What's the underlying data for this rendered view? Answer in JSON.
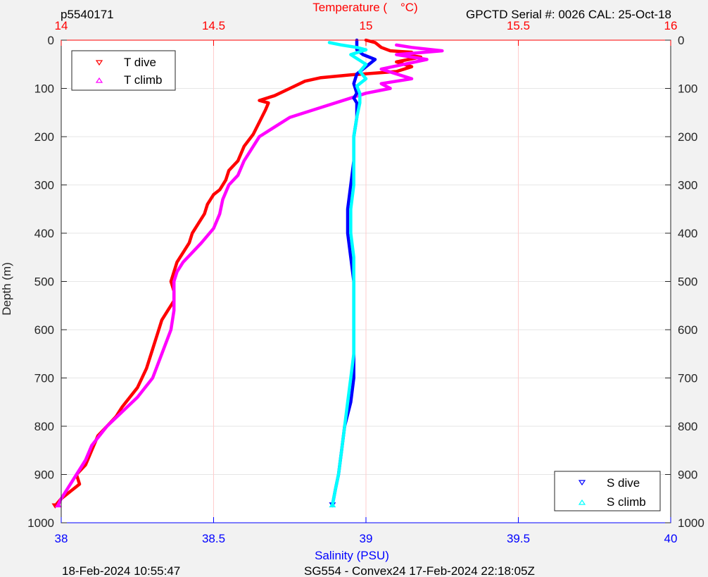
{
  "header": {
    "profile_id": "p5540171",
    "sensor_info": "GPCTD Serial #: 0026 CAL: 25-Oct-18"
  },
  "footer": {
    "plot_time": "18-Feb-2024 10:55:47",
    "mission_info": "SG554 - Convex24 17-Feb-2024 22:18:05Z"
  },
  "colors": {
    "temperature_axis": "#ff0000",
    "salinity_axis": "#0000ff",
    "t_dive": "#ff0000",
    "t_climb": "#ff00ff",
    "s_dive": "#0000ff",
    "s_climb": "#00ffff",
    "grid_x": "#ffcccc",
    "grid_y": "#e6e6e6",
    "background": "#f2f2f2",
    "plot_area": "#ffffff"
  },
  "chart_data": {
    "type": "line",
    "ylabel": "Depth (m)",
    "ylim": [
      1000,
      0
    ],
    "yticks": [
      "0",
      "100",
      "200",
      "300",
      "400",
      "500",
      "600",
      "700",
      "800",
      "900",
      "1000"
    ],
    "temperature_axis": {
      "label": "Temperature (    °C)",
      "position": "top",
      "range": [
        14,
        16
      ],
      "ticks": [
        "14",
        "14.5",
        "15",
        "15.5",
        "16"
      ]
    },
    "salinity_axis": {
      "label": "Salinity (PSU)",
      "position": "bottom",
      "range": [
        38,
        40
      ],
      "ticks": [
        "38",
        "38.5",
        "39",
        "39.5",
        "40"
      ]
    },
    "grid": true,
    "legends": [
      {
        "placement": "top-left",
        "entries": [
          {
            "label": "T dive",
            "series": "t_dive",
            "marker": "down-triangle"
          },
          {
            "label": "T climb",
            "series": "t_climb",
            "marker": "up-triangle"
          }
        ]
      },
      {
        "placement": "bottom-right",
        "entries": [
          {
            "label": "S dive",
            "series": "s_dive",
            "marker": "down-triangle"
          },
          {
            "label": "S climb",
            "series": "s_climb",
            "marker": "up-triangle"
          }
        ]
      }
    ],
    "series": [
      {
        "name": "T dive",
        "key": "t_dive",
        "axis": "temperature",
        "points": [
          [
            15.0,
            0
          ],
          [
            15.03,
            5
          ],
          [
            15.05,
            15
          ],
          [
            15.08,
            22
          ],
          [
            15.15,
            25
          ],
          [
            15.12,
            30
          ],
          [
            15.18,
            35
          ],
          [
            15.1,
            45
          ],
          [
            15.15,
            55
          ],
          [
            15.1,
            65
          ],
          [
            14.95,
            72
          ],
          [
            14.85,
            78
          ],
          [
            14.8,
            85
          ],
          [
            14.75,
            100
          ],
          [
            14.7,
            115
          ],
          [
            14.65,
            125
          ],
          [
            14.68,
            130
          ],
          [
            14.67,
            145
          ],
          [
            14.65,
            170
          ],
          [
            14.63,
            195
          ],
          [
            14.6,
            220
          ],
          [
            14.58,
            250
          ],
          [
            14.55,
            270
          ],
          [
            14.54,
            290
          ],
          [
            14.52,
            310
          ],
          [
            14.5,
            320
          ],
          [
            14.48,
            340
          ],
          [
            14.47,
            360
          ],
          [
            14.45,
            380
          ],
          [
            14.43,
            400
          ],
          [
            14.42,
            420
          ],
          [
            14.4,
            440
          ],
          [
            14.38,
            460
          ],
          [
            14.37,
            480
          ],
          [
            14.36,
            500
          ],
          [
            14.37,
            520
          ],
          [
            14.37,
            540
          ],
          [
            14.35,
            560
          ],
          [
            14.33,
            580
          ],
          [
            14.32,
            600
          ],
          [
            14.3,
            640
          ],
          [
            14.28,
            680
          ],
          [
            14.25,
            720
          ],
          [
            14.2,
            760
          ],
          [
            14.18,
            780
          ],
          [
            14.15,
            800
          ],
          [
            14.12,
            820
          ],
          [
            14.1,
            850
          ],
          [
            14.08,
            880
          ],
          [
            14.05,
            900
          ],
          [
            14.06,
            920
          ],
          [
            14.03,
            935
          ],
          [
            14.0,
            950
          ],
          [
            13.98,
            965
          ]
        ]
      },
      {
        "name": "T climb",
        "key": "t_climb",
        "axis": "temperature",
        "points": [
          [
            15.1,
            10
          ],
          [
            15.15,
            15
          ],
          [
            15.25,
            22
          ],
          [
            15.1,
            30
          ],
          [
            15.2,
            40
          ],
          [
            15.05,
            60
          ],
          [
            15.15,
            80
          ],
          [
            15.05,
            90
          ],
          [
            15.08,
            100
          ],
          [
            15.0,
            110
          ],
          [
            14.95,
            120
          ],
          [
            14.85,
            140
          ],
          [
            14.75,
            160
          ],
          [
            14.7,
            180
          ],
          [
            14.65,
            200
          ],
          [
            14.62,
            230
          ],
          [
            14.6,
            250
          ],
          [
            14.58,
            280
          ],
          [
            14.55,
            300
          ],
          [
            14.53,
            330
          ],
          [
            14.52,
            360
          ],
          [
            14.5,
            390
          ],
          [
            14.46,
            420
          ],
          [
            14.43,
            440
          ],
          [
            14.4,
            460
          ],
          [
            14.38,
            480
          ],
          [
            14.37,
            500
          ],
          [
            14.37,
            530
          ],
          [
            14.37,
            560
          ],
          [
            14.36,
            600
          ],
          [
            14.33,
            650
          ],
          [
            14.3,
            700
          ],
          [
            14.25,
            740
          ],
          [
            14.2,
            770
          ],
          [
            14.15,
            800
          ],
          [
            14.1,
            840
          ],
          [
            14.08,
            870
          ],
          [
            14.05,
            900
          ],
          [
            14.02,
            930
          ],
          [
            14.0,
            950
          ],
          [
            13.99,
            963
          ]
        ]
      },
      {
        "name": "S dive",
        "key": "s_dive",
        "axis": "salinity",
        "points": [
          [
            38.97,
            0
          ],
          [
            38.97,
            20
          ],
          [
            38.99,
            30
          ],
          [
            39.03,
            40
          ],
          [
            39.0,
            55
          ],
          [
            38.97,
            70
          ],
          [
            38.96,
            90
          ],
          [
            38.97,
            110
          ],
          [
            38.96,
            120
          ],
          [
            38.97,
            130
          ],
          [
            38.97,
            160
          ],
          [
            38.96,
            200
          ],
          [
            38.96,
            250
          ],
          [
            38.95,
            300
          ],
          [
            38.94,
            350
          ],
          [
            38.94,
            400
          ],
          [
            38.95,
            450
          ],
          [
            38.96,
            500
          ],
          [
            38.96,
            550
          ],
          [
            38.96,
            600
          ],
          [
            38.96,
            650
          ],
          [
            38.96,
            700
          ],
          [
            38.95,
            750
          ],
          [
            38.93,
            800
          ],
          [
            38.92,
            850
          ],
          [
            38.91,
            900
          ],
          [
            38.9,
            930
          ],
          [
            38.89,
            963
          ]
        ]
      },
      {
        "name": "S climb",
        "key": "s_climb",
        "axis": "salinity",
        "points": [
          [
            38.88,
            5
          ],
          [
            38.92,
            10
          ],
          [
            38.97,
            15
          ],
          [
            39.0,
            20
          ],
          [
            38.95,
            30
          ],
          [
            39.0,
            50
          ],
          [
            38.98,
            65
          ],
          [
            39.0,
            80
          ],
          [
            38.97,
            95
          ],
          [
            38.98,
            110
          ],
          [
            38.98,
            130
          ],
          [
            38.97,
            160
          ],
          [
            38.96,
            200
          ],
          [
            38.96,
            250
          ],
          [
            38.96,
            300
          ],
          [
            38.95,
            350
          ],
          [
            38.95,
            400
          ],
          [
            38.96,
            450
          ],
          [
            38.96,
            500
          ],
          [
            38.96,
            550
          ],
          [
            38.96,
            600
          ],
          [
            38.96,
            650
          ],
          [
            38.95,
            700
          ],
          [
            38.94,
            750
          ],
          [
            38.93,
            800
          ],
          [
            38.92,
            850
          ],
          [
            38.91,
            900
          ],
          [
            38.9,
            930
          ],
          [
            38.89,
            963
          ]
        ]
      }
    ]
  }
}
